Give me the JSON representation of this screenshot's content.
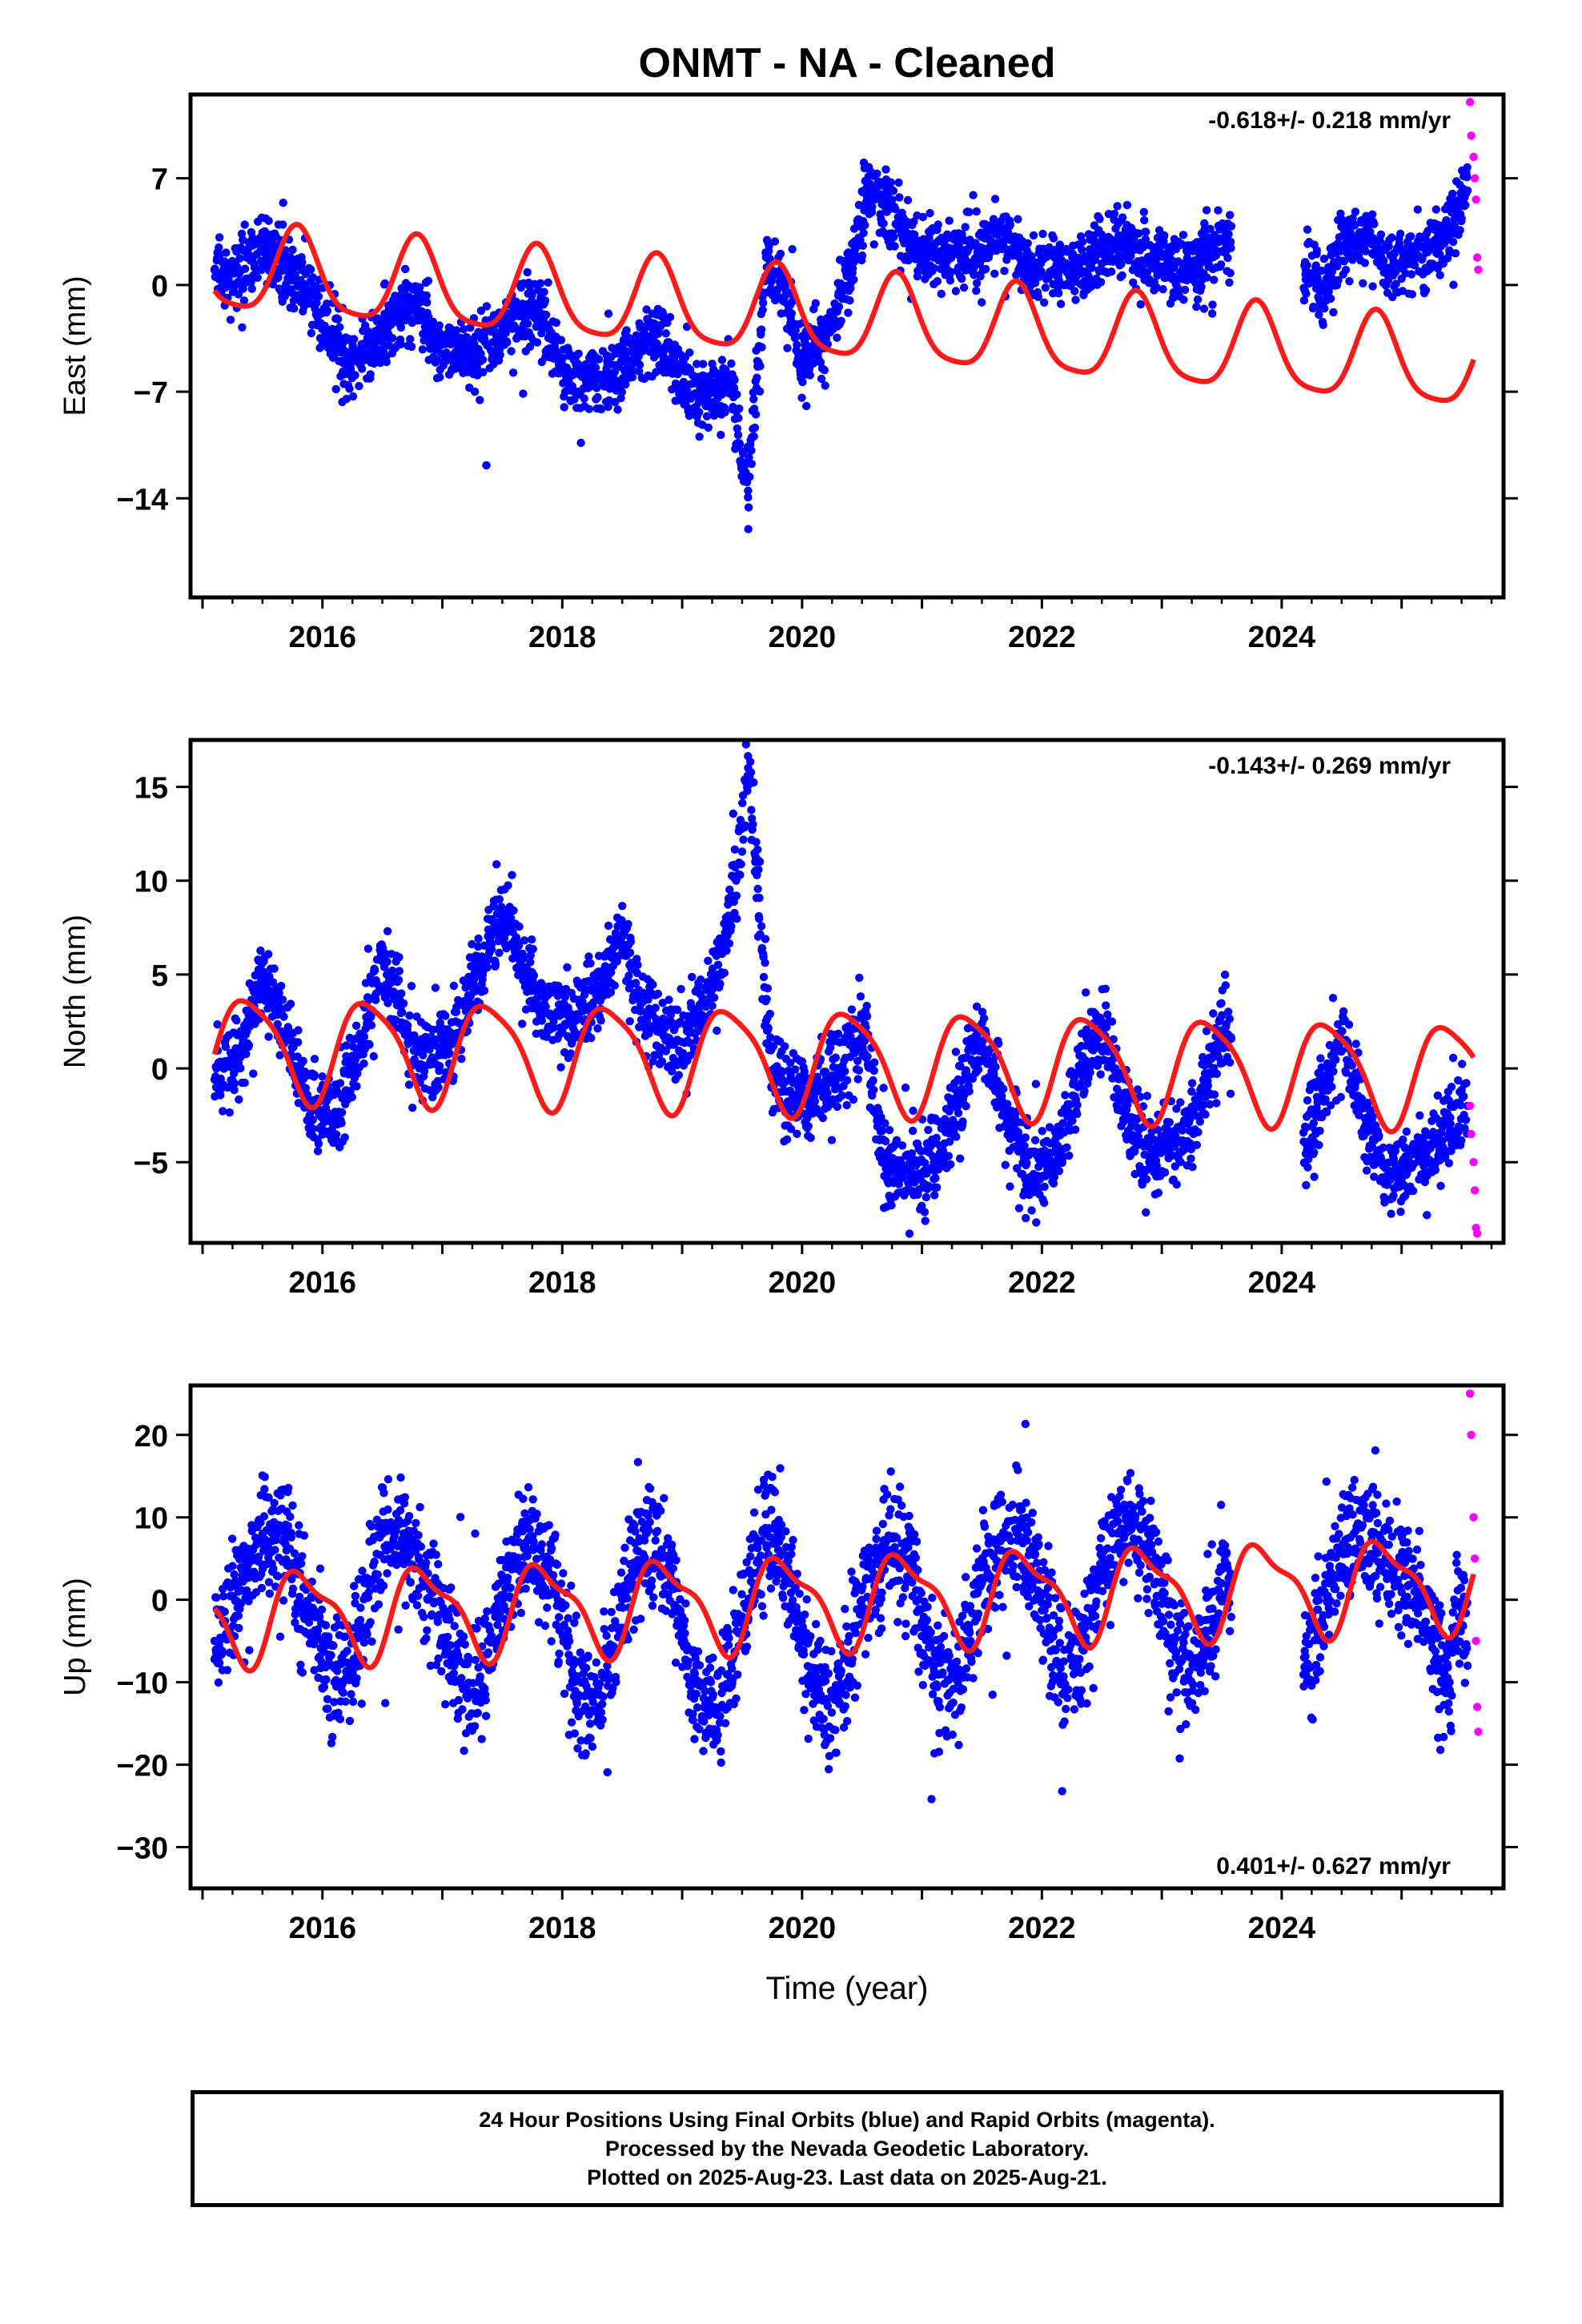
{
  "title": "ONMT  - NA - Cleaned",
  "colors": {
    "final": "#0000ff",
    "rapid": "#ff00ff",
    "model": "#ff1a1a",
    "frame": "#000000"
  },
  "footer": {
    "line1": "24 Hour Positions Using Final Orbits (blue) and Rapid Orbits (magenta).",
    "line2": "Processed by the Nevada Geodetic Laboratory.",
    "line3": "Plotted on 2025-Aug-23. Last data on 2025-Aug-21."
  },
  "chart_data": [
    {
      "type": "scatter",
      "component": "east",
      "ylabel": "East (mm)",
      "xlabel": "",
      "xlim": [
        2014.9,
        2025.85
      ],
      "ylim": [
        -20.5,
        12.5
      ],
      "xticks": [
        2016,
        2018,
        2020,
        2022,
        2024
      ],
      "yticks": [
        7,
        0,
        -7,
        -14
      ],
      "rate": "-0.618+/- 0.218 mm/yr",
      "rate_position": "top-right",
      "series": [
        {
          "label": "Final Orbits",
          "color": "#0000ff",
          "points": [
            [
              2015.1,
              1.0
            ],
            [
              2015.3,
              0.8
            ],
            [
              2015.5,
              2.6
            ],
            [
              2015.7,
              1.2
            ],
            [
              2015.9,
              -0.6
            ],
            [
              2016.1,
              -3.6
            ],
            [
              2016.2,
              -5.0
            ],
            [
              2016.4,
              -4.2
            ],
            [
              2016.6,
              -2.0
            ],
            [
              2016.8,
              -0.4
            ],
            [
              2016.9,
              -3.5
            ],
            [
              2017.1,
              -4.5
            ],
            [
              2017.3,
              -4.2
            ],
            [
              2017.5,
              -3.0
            ],
            [
              2017.7,
              -1.6
            ],
            [
              2017.9,
              -3.2
            ],
            [
              2018.0,
              -5.5
            ],
            [
              2018.2,
              -6.3
            ],
            [
              2018.4,
              -5.8
            ],
            [
              2018.6,
              -4.4
            ],
            [
              2018.8,
              -3.2
            ],
            [
              2019.0,
              -6.5
            ],
            [
              2019.2,
              -7.5
            ],
            [
              2019.4,
              -6.6
            ],
            [
              2019.55,
              -13.5
            ],
            [
              2019.7,
              2.0
            ],
            [
              2019.85,
              0.0
            ],
            [
              2020.0,
              -4.8
            ],
            [
              2020.2,
              -3.5
            ],
            [
              2020.4,
              0.8
            ],
            [
              2020.55,
              6.5
            ],
            [
              2020.7,
              5.0
            ],
            [
              2020.9,
              2.5
            ],
            [
              2021.1,
              1.8
            ],
            [
              2021.3,
              2.0
            ],
            [
              2021.5,
              2.2
            ],
            [
              2021.7,
              3.2
            ],
            [
              2021.9,
              1.2
            ],
            [
              2022.1,
              1.0
            ],
            [
              2022.3,
              0.8
            ],
            [
              2022.5,
              2.2
            ],
            [
              2022.7,
              2.6
            ],
            [
              2022.9,
              1.4
            ],
            [
              2023.1,
              1.2
            ],
            [
              2023.3,
              1.0
            ],
            [
              2023.5,
              3.0
            ],
            [
              2024.2,
              1.0
            ],
            [
              2024.35,
              -0.4
            ],
            [
              2024.5,
              2.6
            ],
            [
              2024.7,
              3.4
            ],
            [
              2024.85,
              1.6
            ],
            [
              2025.1,
              1.5
            ],
            [
              2025.4,
              3.4
            ],
            [
              2025.55,
              6.2
            ]
          ]
        },
        {
          "label": "Rapid Orbits",
          "color": "#ff00ff",
          "points": [
            [
              2025.57,
              12.0
            ],
            [
              2025.58,
              9.8
            ],
            [
              2025.6,
              8.4
            ],
            [
              2025.61,
              7.0
            ],
            [
              2025.62,
              5.6
            ],
            [
              2025.63,
              1.8
            ],
            [
              2025.64,
              1.0
            ]
          ]
        },
        {
          "label": "Model",
          "color": "#ff1a1a",
          "model": {
            "t0": 2015.1,
            "y0": 1.0,
            "trend": -0.618,
            "amp1": 2.8,
            "phase1": 3.5,
            "amp2": 0.6,
            "phase2": -0.7
          }
        }
      ]
    },
    {
      "type": "scatter",
      "component": "north",
      "ylabel": "North (mm)",
      "xlabel": "",
      "xlim": [
        2014.9,
        2025.85
      ],
      "ylim": [
        -9.3,
        17.5
      ],
      "xticks": [
        2016,
        2018,
        2020,
        2022,
        2024
      ],
      "yticks": [
        15,
        10,
        5,
        0,
        -5
      ],
      "rate": "-0.143+/- 0.269 mm/yr",
      "rate_position": "top-right",
      "series": [
        {
          "label": "Final Orbits",
          "color": "#0000ff",
          "points": [
            [
              2015.1,
              -0.6
            ],
            [
              2015.3,
              0.5
            ],
            [
              2015.5,
              5.0
            ],
            [
              2015.7,
              1.8
            ],
            [
              2015.9,
              -2.0
            ],
            [
              2016.1,
              -2.5
            ],
            [
              2016.3,
              0.8
            ],
            [
              2016.5,
              6.0
            ],
            [
              2016.7,
              2.0
            ],
            [
              2016.9,
              0.4
            ],
            [
              2017.1,
              1.5
            ],
            [
              2017.3,
              5.0
            ],
            [
              2017.5,
              8.5
            ],
            [
              2017.7,
              5.0
            ],
            [
              2017.9,
              2.8
            ],
            [
              2018.1,
              2.5
            ],
            [
              2018.3,
              4.0
            ],
            [
              2018.5,
              7.0
            ],
            [
              2018.7,
              3.0
            ],
            [
              2018.9,
              1.4
            ],
            [
              2019.1,
              2.5
            ],
            [
              2019.3,
              5.0
            ],
            [
              2019.45,
              10.0
            ],
            [
              2019.55,
              16.0
            ],
            [
              2019.75,
              -0.5
            ],
            [
              2019.95,
              -1.6
            ],
            [
              2020.1,
              -1.5
            ],
            [
              2020.3,
              0.0
            ],
            [
              2020.5,
              2.0
            ],
            [
              2020.7,
              -5.0
            ],
            [
              2020.9,
              -5.6
            ],
            [
              2021.1,
              -5.0
            ],
            [
              2021.3,
              -2.0
            ],
            [
              2021.5,
              2.0
            ],
            [
              2021.7,
              -3.0
            ],
            [
              2021.9,
              -5.8
            ],
            [
              2022.1,
              -5.0
            ],
            [
              2022.3,
              -1.0
            ],
            [
              2022.5,
              2.5
            ],
            [
              2022.7,
              -2.5
            ],
            [
              2022.9,
              -4.8
            ],
            [
              2023.1,
              -4.0
            ],
            [
              2023.3,
              -2.0
            ],
            [
              2023.5,
              2.0
            ],
            [
              2024.2,
              -4.0
            ],
            [
              2024.4,
              0.0
            ],
            [
              2024.5,
              2.0
            ],
            [
              2024.7,
              -3.0
            ],
            [
              2024.9,
              -5.8
            ],
            [
              2025.3,
              -4.0
            ],
            [
              2025.55,
              -2.0
            ]
          ]
        },
        {
          "label": "Rapid Orbits",
          "color": "#ff00ff",
          "points": [
            [
              2025.57,
              -2.0
            ],
            [
              2025.58,
              -3.5
            ],
            [
              2025.6,
              -5.0
            ],
            [
              2025.61,
              -6.5
            ],
            [
              2025.62,
              -8.5
            ],
            [
              2025.63,
              -8.8
            ]
          ]
        },
        {
          "label": "Model",
          "color": "#ff1a1a",
          "model": {
            "t0": 2015.1,
            "y0": 1.2,
            "trend": -0.143,
            "amp1": 2.7,
            "phase1": -0.25,
            "amp2": 0.55,
            "phase2": 0.4
          }
        }
      ]
    },
    {
      "type": "scatter",
      "component": "up",
      "ylabel": "Up (mm)",
      "xlabel": "Time (year)",
      "xlim": [
        2014.9,
        2025.85
      ],
      "ylim": [
        -35,
        26
      ],
      "xticks": [
        2016,
        2018,
        2020,
        2022,
        2024
      ],
      "yticks": [
        20,
        10,
        0,
        -10,
        -20,
        -30
      ],
      "rate": "0.401+/- 0.627 mm/yr",
      "rate_position": "bottom-right",
      "series": [
        {
          "label": "Final Orbits",
          "color": "#0000ff",
          "points": [
            [
              2015.1,
              -5.0
            ],
            [
              2015.3,
              1.0
            ],
            [
              2015.5,
              8.0
            ],
            [
              2015.7,
              6.0
            ],
            [
              2015.9,
              -2.0
            ],
            [
              2016.1,
              -10.0
            ],
            [
              2016.3,
              -4.0
            ],
            [
              2016.5,
              8.0
            ],
            [
              2016.7,
              6.0
            ],
            [
              2016.9,
              2.0
            ],
            [
              2017.1,
              -8.0
            ],
            [
              2017.3,
              -10.0
            ],
            [
              2017.5,
              0.0
            ],
            [
              2017.7,
              7.0
            ],
            [
              2017.9,
              3.0
            ],
            [
              2018.1,
              -10.0
            ],
            [
              2018.3,
              -13.0
            ],
            [
              2018.5,
              0.0
            ],
            [
              2018.7,
              8.0
            ],
            [
              2018.9,
              4.0
            ],
            [
              2019.1,
              -12.0
            ],
            [
              2019.3,
              -14.0
            ],
            [
              2019.5,
              -2.0
            ],
            [
              2019.7,
              8.0
            ],
            [
              2019.9,
              2.0
            ],
            [
              2020.1,
              -10.0
            ],
            [
              2020.3,
              -12.0
            ],
            [
              2020.5,
              0.0
            ],
            [
              2020.7,
              7.0
            ],
            [
              2020.9,
              5.0
            ],
            [
              2021.1,
              -8.0
            ],
            [
              2021.3,
              -10.0
            ],
            [
              2021.5,
              2.0
            ],
            [
              2021.7,
              9.0
            ],
            [
              2021.9,
              6.0
            ],
            [
              2022.1,
              -6.0
            ],
            [
              2022.3,
              -8.0
            ],
            [
              2022.5,
              4.0
            ],
            [
              2022.7,
              10.0
            ],
            [
              2022.9,
              6.0
            ],
            [
              2023.1,
              -6.0
            ],
            [
              2023.3,
              -8.0
            ],
            [
              2023.5,
              2.0
            ],
            [
              2024.2,
              -8.0
            ],
            [
              2024.4,
              2.0
            ],
            [
              2024.6,
              8.0
            ],
            [
              2024.8,
              6.0
            ],
            [
              2025.1,
              2.0
            ],
            [
              2025.4,
              -10.0
            ],
            [
              2025.5,
              3.0
            ],
            [
              2025.55,
              -8.0
            ]
          ]
        },
        {
          "label": "Rapid Orbits",
          "color": "#ff00ff",
          "points": [
            [
              2025.57,
              25.0
            ],
            [
              2025.58,
              20.0
            ],
            [
              2025.6,
              10.0
            ],
            [
              2025.61,
              5.0
            ],
            [
              2025.62,
              -5.0
            ],
            [
              2025.63,
              -13.0
            ],
            [
              2025.64,
              -16.0
            ]
          ]
        },
        {
          "label": "Model",
          "color": "#ff1a1a",
          "model": {
            "t0": 2015.1,
            "y0": -2.1,
            "trend": 0.401,
            "amp1": 5.2,
            "phase1": 3.14,
            "amp2": 1.8,
            "phase2": 0.6
          }
        }
      ]
    }
  ]
}
